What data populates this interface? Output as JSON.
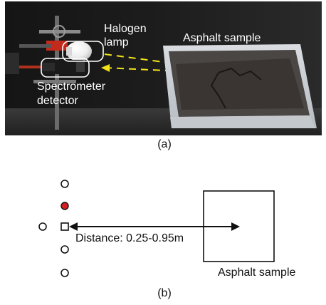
{
  "photo": {
    "lamp_label_line1": "Halogen",
    "lamp_label_line2": "lamp",
    "sample_label": "Asphalt sample",
    "detector_label_line1": "Spectrometer",
    "detector_label_line2": "detector",
    "caption": "(a)"
  },
  "diagram": {
    "distance_label": "Distance: 0.25-0.95m",
    "sample_label": "Asphalt sample",
    "caption": "(b)"
  },
  "colors": {
    "beam": "#f2e21a",
    "callout": "#ffffff",
    "active_position": "#d42020",
    "text": "#111111"
  }
}
